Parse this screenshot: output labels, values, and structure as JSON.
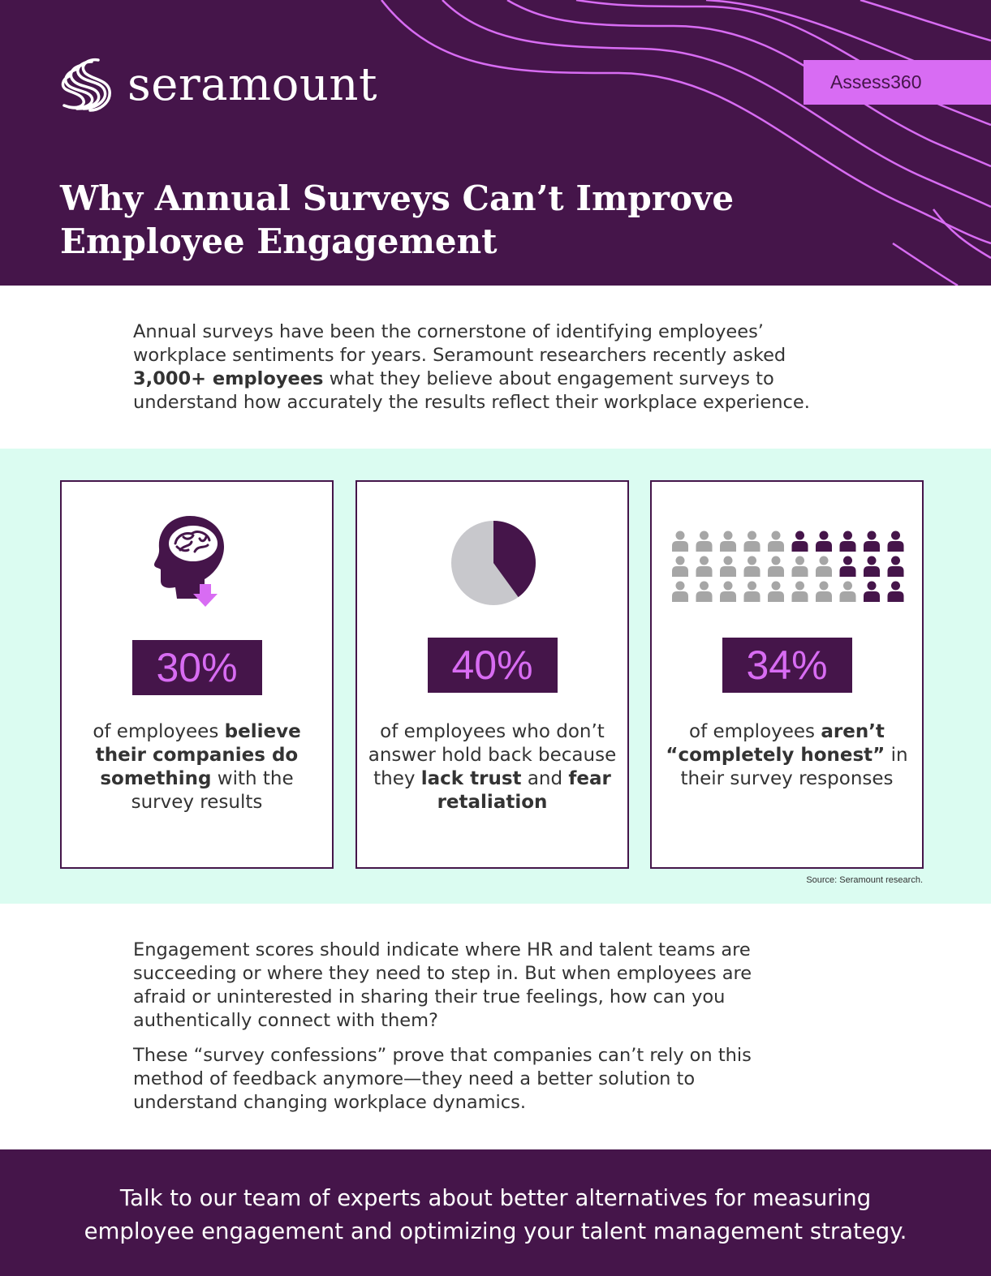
{
  "header": {
    "logo_text": "seramount",
    "badge": "Assess360",
    "title_line1": "Why Annual Surveys Can’t Improve",
    "title_line2": "Employee Engagement"
  },
  "intro": {
    "line1": "Annual surveys have been the cornerstone of identifying employees’",
    "line2": "workplace sentiments for years. Seramount researchers recently asked",
    "line3_bold": "3,000+ employees",
    "line3_rest": " what they believe about engagement surveys to",
    "line4": "understand how accurately the results reflect their workplace experience."
  },
  "stats": [
    {
      "value": "30%",
      "text_a": "of employees ",
      "bold_a": "believe their companies do something",
      "text_b": " with the survey results"
    },
    {
      "value": "40%",
      "text_a": "of employees who don’t answer hold back because they ",
      "bold_a": "lack trust",
      "text_b": " and ",
      "bold_b": "fear retaliation"
    },
    {
      "value": "34%",
      "text_a": "of employees ",
      "bold_a": "aren’t “completely honest”",
      "text_b": " in their survey responses"
    }
  ],
  "visuals": {
    "pie_fraction": 0.4,
    "people_total": 30,
    "people_highlighted": 10,
    "colors": {
      "purple": "#45154a",
      "pink": "#d86cf3",
      "gray": "#a6a6a6",
      "light_gray": "#c8c8cc",
      "mint": "#dbfcf1"
    },
    "icons": [
      "brain-head-icon",
      "down-arrow-icon",
      "pie-chart",
      "person-icon"
    ]
  },
  "source": "Source: Seramount research.",
  "body": {
    "p1_line1": "Engagement scores should indicate where HR and talent teams are",
    "p1_line2": "succeeding or where they need to step in. But when employees are",
    "p1_line3": "afraid or uninterested in sharing their true feelings, how can you",
    "p1_line4": "authentically connect with them?",
    "p2_line1": "These “survey confessions” prove that companies can’t rely on this",
    "p2_line2": "method of feedback anymore—they need a better solution to",
    "p2_line3": "understand changing workplace dynamics."
  },
  "footer": {
    "line1": "Talk to our team of experts about better alternatives for measuring",
    "line2": "employee engagement and optimizing your talent management strategy."
  }
}
